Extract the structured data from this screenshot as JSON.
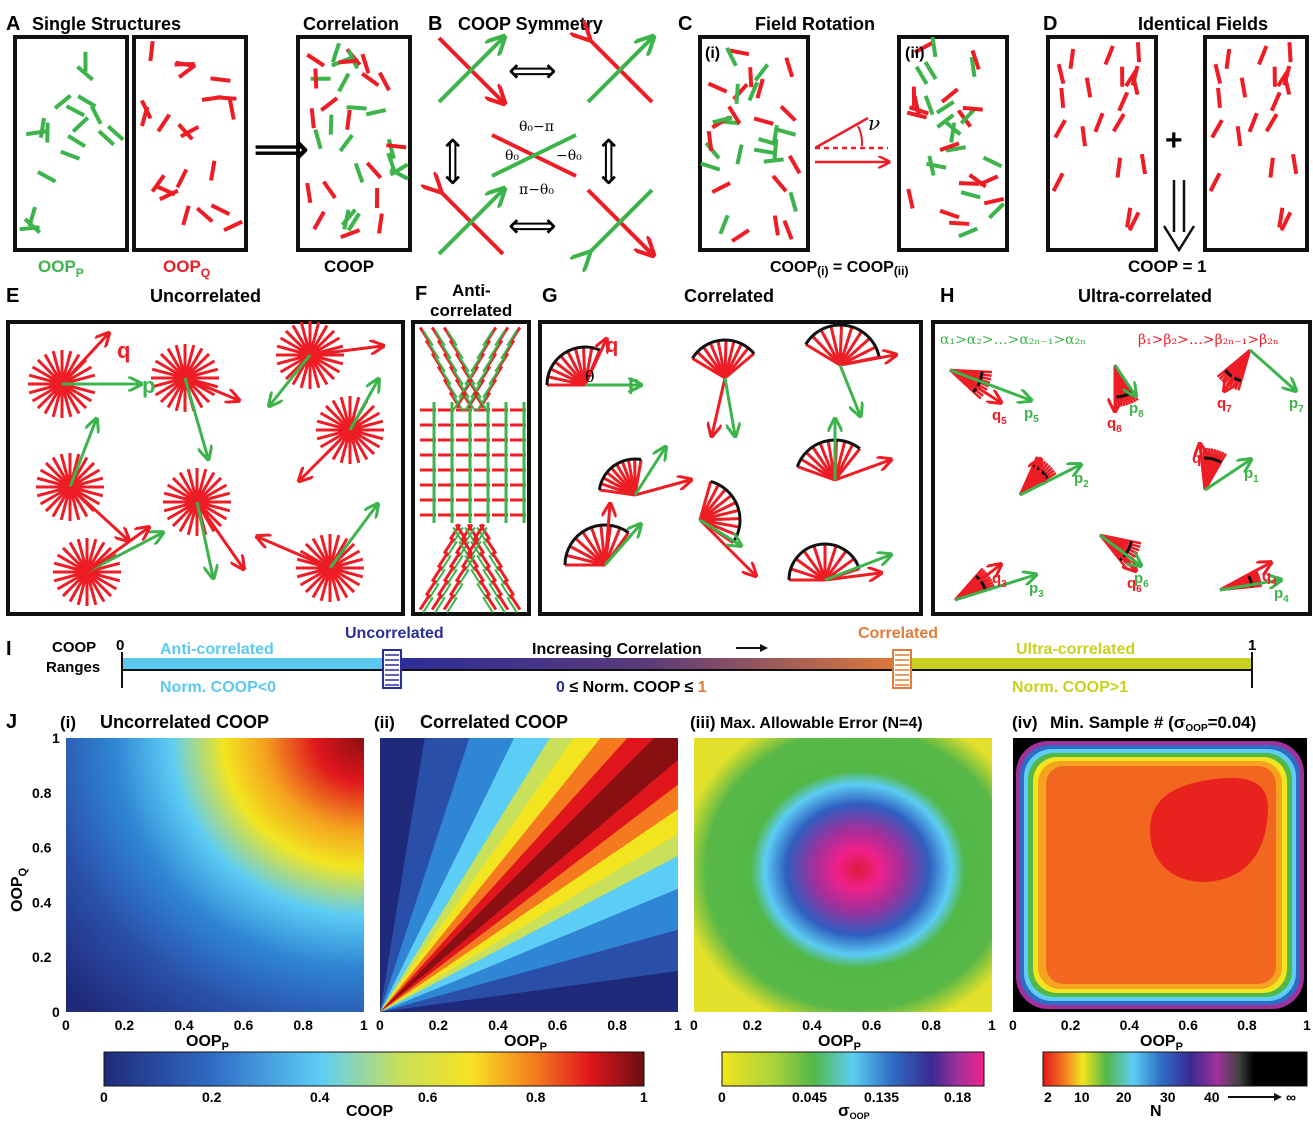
{
  "colors": {
    "red": "#ee1c24",
    "green": "#3cb44b",
    "black": "#111111",
    "cyan": "#5bc8f0",
    "navy": "#2b2d9a",
    "orange": "#e07b39",
    "lime": "#c8d21e"
  },
  "panel_letters": {
    "A": "A",
    "B": "B",
    "C": "C",
    "D": "D",
    "E": "E",
    "F": "F",
    "G": "G",
    "H": "H",
    "I": "I",
    "J": "J"
  },
  "A": {
    "title1": "Single Structures",
    "title2": "Correlation",
    "oop_p": "OOP",
    "oop_p_sub": "P",
    "oop_q": "OOP",
    "oop_q_sub": "Q",
    "coop": "COOP"
  },
  "B": {
    "title": "COOP Symmetry",
    "a1": "θ₀−π",
    "a2": "θ₀",
    "a3": "−θ₀",
    "a4": "π−θ₀"
  },
  "C": {
    "title": "Field Rotation",
    "i": "(i)",
    "ii": "(ii)",
    "nu": "ν",
    "eq": "COOP",
    "eq_sub1": "(i)",
    "eq_mid": " = COOP",
    "eq_sub2": "(ii)"
  },
  "D": {
    "title": "Identical Fields",
    "plus": "+",
    "eq": "COOP = 1"
  },
  "E": {
    "title": "Uncorrelated",
    "q": "q",
    "p": "p"
  },
  "F": {
    "title1": "Anti-",
    "title2": "correlated"
  },
  "G": {
    "title": "Correlated",
    "q": "q",
    "p": "p",
    "theta": "θ"
  },
  "H": {
    "title": "Ultra-correlated",
    "alpha": "α₁>α₂>…>α₂ₙ₋₁>α₂ₙ",
    "beta": "β₁>β₂>…>β₂ₙ₋₁>β₂ₙ",
    "labels": [
      {
        "q": "q",
        "qs": "5",
        "p": "p",
        "ps": "5"
      },
      {
        "q": "q",
        "qs": "8",
        "p": "p",
        "ps": "8"
      },
      {
        "q": "q",
        "qs": "7",
        "p": "p",
        "ps": "7"
      },
      {
        "q": "q",
        "qs": "2",
        "p": "p",
        "ps": "2"
      },
      {
        "q": "q",
        "qs": "1",
        "p": "p",
        "ps": "1"
      },
      {
        "q": "q",
        "qs": "3",
        "p": "p",
        "ps": "3"
      },
      {
        "q": "q",
        "qs": "6",
        "p": "p",
        "ps": "6"
      },
      {
        "q": "q",
        "qs": "4",
        "p": "p",
        "ps": "4"
      }
    ]
  },
  "I": {
    "coop": "COOP",
    "ranges": "Ranges",
    "zero": "0",
    "one": "1",
    "anti": "Anti-correlated",
    "uncorr": "Uncorrelated",
    "incr": "Increasing Correlation",
    "corr": "Correlated",
    "ultra": "Ultra-correlated",
    "norm_lt": "Norm. COOP<0",
    "norm_mid_0": "0",
    "norm_mid": " ≤ Norm. COOP ≤ ",
    "norm_mid_1": "1",
    "norm_gt": "Norm. COOP>1"
  },
  "J": {
    "titles": [
      "Uncorrelated COOP",
      "Correlated COOP",
      "Max. Allowable Error (N=4)",
      "Min. Sample # (σ"
    ],
    "title4_sub": "OOP",
    "title4_end": "=0.04)",
    "nums": [
      "(i)",
      "(ii)",
      "(iii)",
      "(iv)"
    ],
    "ylabel": "OOP",
    "ylabel_sub": "Q",
    "xlabel": "OOP",
    "xlabel_sub": "P",
    "ticks": [
      "0",
      "0.2",
      "0.4",
      "0.6",
      "0.8",
      "1"
    ],
    "cb1": {
      "label": "COOP",
      "ticks": [
        "0",
        "0.2",
        "0.4",
        "0.6",
        "0.8",
        "1"
      ]
    },
    "cb2": {
      "label": "σ",
      "label_sub": "OOP",
      "ticks": [
        "0",
        "0.045",
        "0.135",
        "0.18"
      ]
    },
    "cb3": {
      "label": "N",
      "ticks": [
        "2",
        "10",
        "20",
        "30",
        "40",
        "∞"
      ]
    }
  },
  "chart_data": [
    {
      "type": "heatmap",
      "title": "Uncorrelated COOP",
      "xlabel": "OOP_P",
      "ylabel": "OOP_Q",
      "xlim": [
        0,
        1
      ],
      "ylim": [
        0,
        1
      ],
      "colorbar": "COOP",
      "clim": [
        0,
        1
      ]
    },
    {
      "type": "heatmap",
      "title": "Correlated COOP",
      "xlabel": "OOP_P",
      "ylabel": "",
      "xlim": [
        0,
        1
      ],
      "ylim": [
        0,
        1
      ],
      "colorbar": "COOP",
      "clim": [
        0,
        1
      ]
    },
    {
      "type": "heatmap",
      "title": "Max. Allowable Error (N=4)",
      "xlabel": "OOP_P",
      "ylabel": "",
      "xlim": [
        0,
        1
      ],
      "ylim": [
        0,
        1
      ],
      "colorbar": "σ_OOP",
      "clim": [
        0,
        0.18
      ]
    },
    {
      "type": "heatmap",
      "title": "Min. Sample # (σ_OOP=0.04)",
      "xlabel": "OOP_P",
      "ylabel": "",
      "xlim": [
        0,
        1
      ],
      "ylim": [
        0,
        1
      ],
      "colorbar": "N",
      "clim": [
        2,
        40
      ]
    }
  ]
}
